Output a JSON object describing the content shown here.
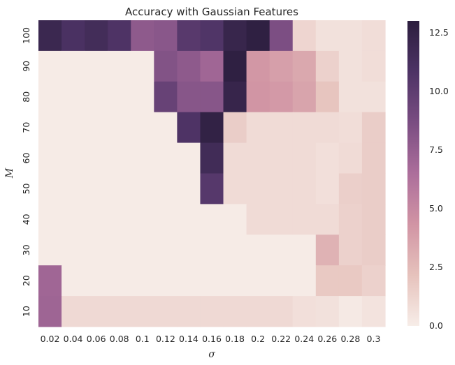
{
  "chart_data": {
    "type": "heatmap",
    "title": "Accuracy with Gaussian Features",
    "xlabel": "σ",
    "ylabel": "M",
    "x_categories": [
      "0.02",
      "0.04",
      "0.06",
      "0.08",
      "0.1",
      "0.12",
      "0.14",
      "0.16",
      "0.18",
      "0.2",
      "0.22",
      "0.24",
      "0.26",
      "0.28",
      "0.3"
    ],
    "y_categories": [
      "100",
      "90",
      "80",
      "70",
      "60",
      "50",
      "40",
      "30",
      "20",
      "10"
    ],
    "values": [
      [
        12.0,
        11.0,
        11.5,
        10.8,
        7.8,
        8.0,
        10.3,
        10.7,
        12.2,
        12.8,
        8.6,
        1.2,
        0.6,
        0.6,
        0.8
      ],
      [
        0.1,
        0.1,
        0.1,
        0.1,
        0.1,
        8.3,
        7.8,
        7.0,
        12.8,
        4.2,
        3.8,
        3.4,
        1.4,
        0.6,
        0.8
      ],
      [
        0.1,
        0.1,
        0.1,
        0.1,
        0.1,
        9.6,
        8.1,
        8.1,
        12.3,
        4.3,
        4.1,
        3.6,
        2.0,
        0.6,
        0.6
      ],
      [
        0.1,
        0.1,
        0.1,
        0.1,
        0.1,
        0.1,
        10.8,
        12.6,
        1.6,
        0.9,
        0.9,
        0.9,
        0.9,
        0.8,
        1.6
      ],
      [
        0.1,
        0.1,
        0.1,
        0.1,
        0.1,
        0.1,
        0.1,
        11.6,
        0.9,
        0.9,
        0.9,
        0.9,
        0.7,
        0.9,
        1.6
      ],
      [
        0.1,
        0.1,
        0.1,
        0.1,
        0.1,
        0.1,
        0.1,
        10.4,
        0.9,
        0.9,
        0.9,
        0.9,
        0.7,
        1.5,
        1.6
      ],
      [
        0.1,
        0.1,
        0.1,
        0.1,
        0.1,
        0.1,
        0.1,
        0.1,
        0.1,
        0.9,
        0.9,
        0.9,
        0.9,
        1.4,
        1.6
      ],
      [
        0.1,
        0.1,
        0.1,
        0.1,
        0.1,
        0.1,
        0.1,
        0.1,
        0.1,
        0.1,
        0.1,
        0.1,
        2.9,
        1.4,
        1.6
      ],
      [
        7.0,
        0.1,
        0.1,
        0.1,
        0.1,
        0.1,
        0.1,
        0.1,
        0.1,
        0.1,
        0.1,
        0.1,
        1.8,
        1.8,
        1.4
      ],
      [
        7.1,
        1.0,
        1.0,
        1.0,
        1.0,
        1.0,
        1.0,
        1.0,
        1.0,
        1.0,
        1.0,
        0.7,
        0.6,
        0.2,
        0.5
      ]
    ],
    "vmin": 0,
    "vmax": 13,
    "colorbar_ticks": [
      "0.0",
      "2.5",
      "5.0",
      "7.5",
      "10.0",
      "12.5"
    ],
    "colorbar_tick_values": [
      0,
      2.5,
      5,
      7.5,
      10,
      12.5
    ],
    "colormap": [
      "#f7ede8",
      "#e6c2bc",
      "#d194a4",
      "#ac6e9b",
      "#7a4d82",
      "#4d3365",
      "#2c1e3e"
    ],
    "grid": false,
    "legend": "colorbar-right"
  }
}
